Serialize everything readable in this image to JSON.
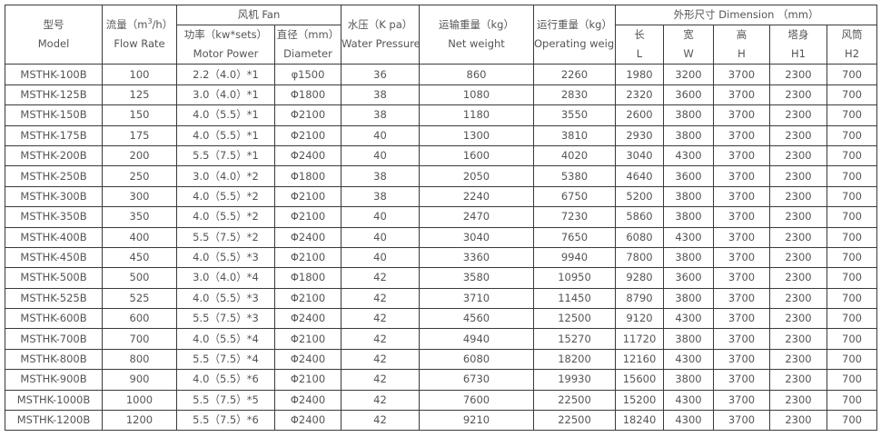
{
  "header": {
    "model": {
      "cn": "型号",
      "en": "Model"
    },
    "flow_rate": {
      "cn_pre": "流量（m",
      "sup": "3",
      "cn_post": "/h）",
      "en": "Flow Rate"
    },
    "fan": "风机 Fan",
    "motor_power": {
      "cn": "功率（kw*sets）",
      "en": "Motor Power"
    },
    "diameter": {
      "cn": "直径（mm）",
      "en": "Diameter"
    },
    "water_pressure": {
      "cn": "水压（K pa）",
      "en": "Water Pressure"
    },
    "net_weight": {
      "cn": "运输重量（kg）",
      "en": "Net weight"
    },
    "operating_weight": {
      "cn": "运行重量（kg）",
      "en": "Operating weight"
    },
    "dimension": "外形尺寸 Dimension （mm）",
    "dims": [
      {
        "cn": "长",
        "en": "L"
      },
      {
        "cn": "宽",
        "en": "W"
      },
      {
        "cn": "高",
        "en": "H"
      },
      {
        "cn": "塔身",
        "en": "H1"
      },
      {
        "cn": "风筒",
        "en": "H2"
      }
    ]
  },
  "rows": [
    [
      "MSTHK-100B",
      "100",
      "2.2（4.0）*1",
      "φ1500",
      "36",
      "860",
      "2260",
      "1980",
      "3200",
      "3700",
      "2300",
      "700"
    ],
    [
      "MSTHK-125B",
      "125",
      "3.0（4.0）*1",
      "Φ1800",
      "38",
      "1080",
      "2830",
      "2320",
      "3600",
      "3700",
      "2300",
      "700"
    ],
    [
      "MSTHK-150B",
      "150",
      "4.0（5.5）*1",
      "Φ2100",
      "38",
      "1180",
      "3550",
      "2600",
      "3800",
      "3700",
      "2300",
      "700"
    ],
    [
      "MSTHK-175B",
      "175",
      "4.0（5.5）*1",
      "Φ2100",
      "40",
      "1300",
      "3810",
      "2930",
      "3800",
      "3700",
      "2300",
      "700"
    ],
    [
      "MSTHK-200B",
      "200",
      "5.5（7.5）*1",
      "Φ2400",
      "40",
      "1600",
      "4020",
      "3040",
      "4300",
      "3700",
      "2300",
      "700"
    ],
    [
      "MSTHK-250B",
      "250",
      "3.0（4.0）*2",
      "Φ1800",
      "38",
      "2050",
      "5380",
      "4640",
      "3600",
      "3700",
      "2300",
      "700"
    ],
    [
      "MSTHK-300B",
      "300",
      "4.0（5.5）*2",
      "Φ2100",
      "38",
      "2240",
      "6750",
      "5200",
      "3800",
      "3700",
      "2300",
      "700"
    ],
    [
      "MSTHK-350B",
      "350",
      "4.0（5.5）*2",
      "Φ2100",
      "40",
      "2470",
      "7230",
      "5860",
      "3800",
      "3700",
      "2300",
      "700"
    ],
    [
      "MSTHK-400B",
      "400",
      "5.5（7.5）*2",
      "Φ2400",
      "40",
      "3040",
      "7650",
      "6080",
      "4300",
      "3700",
      "2300",
      "700"
    ],
    [
      "MSTHK-450B",
      "450",
      "4.0（5.5）*3",
      "Φ2100",
      "40",
      "3360",
      "9940",
      "7800",
      "3800",
      "3700",
      "2300",
      "700"
    ],
    [
      "MSTHK-500B",
      "500",
      "3.0（4.0）*4",
      "Φ1800",
      "42",
      "3580",
      "10950",
      "9280",
      "3600",
      "3700",
      "2300",
      "700"
    ],
    [
      "MSTHK-525B",
      "525",
      "4.0（5.5）*3",
      "Φ2100",
      "42",
      "3710",
      "11450",
      "8790",
      "3800",
      "3700",
      "2300",
      "700"
    ],
    [
      "MSTHK-600B",
      "600",
      "5.5（7.5）*3",
      "Φ2400",
      "42",
      "4560",
      "12500",
      "9120",
      "4300",
      "3700",
      "2300",
      "700"
    ],
    [
      "MSTHK-700B",
      "700",
      "4.0（5.5）*4",
      "Φ2100",
      "42",
      "4940",
      "15270",
      "11720",
      "3800",
      "3700",
      "2300",
      "700"
    ],
    [
      "MSTHK-800B",
      "800",
      "5.5（7.5）*4",
      "Φ2400",
      "42",
      "6080",
      "18200",
      "12160",
      "4300",
      "3700",
      "2300",
      "700"
    ],
    [
      "MSTHK-900B",
      "900",
      "4.0（5.5）*6",
      "Φ2100",
      "42",
      "6730",
      "19930",
      "15600",
      "3800",
      "3700",
      "2300",
      "700"
    ],
    [
      "MSTHK-1000B",
      "1000",
      "5.5（7.5）*5",
      "Φ2400",
      "42",
      "7600",
      "22500",
      "15200",
      "4300",
      "3700",
      "2300",
      "700"
    ],
    [
      "MSTHK-1200B",
      "1200",
      "5.5（7.5）*6",
      "Φ2400",
      "42",
      "9210",
      "22500",
      "18240",
      "4300",
      "3700",
      "2300",
      "700"
    ]
  ]
}
